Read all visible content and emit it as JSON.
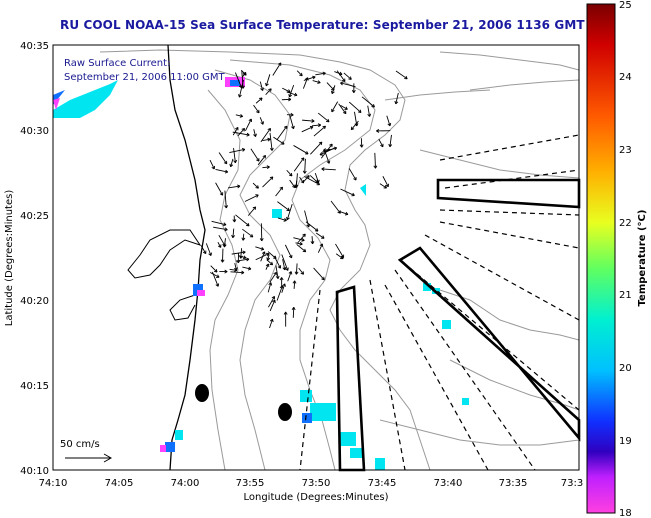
{
  "title": "RU COOL  NOAA-15  Sea Surface Temperature:  September 21, 2006 1136 GMT",
  "current_note": {
    "line1": "Raw Surface Current:",
    "line2": "September 21, 2006 11:00 GMT"
  },
  "axes": {
    "xlabel": "Longitude (Degrees:Minutes)",
    "ylabel": "Latitude (Degrees:Minutes)",
    "x_ticks": [
      "74:10",
      "74:05",
      "74:00",
      "73:55",
      "73:50",
      "73:45",
      "73:40",
      "73:35",
      "73:3"
    ],
    "y_ticks": [
      "40:35",
      "40:30",
      "40:25",
      "40:20",
      "40:15",
      "40:10"
    ]
  },
  "scale_arrow": {
    "label": "50 cm/s"
  },
  "colorbar": {
    "label": "Temperature (°C)",
    "ticks": [
      "25",
      "24",
      "23",
      "22",
      "21",
      "20",
      "19",
      "18"
    ],
    "min": 18,
    "max": 25
  },
  "colors": {
    "title": "#1a1aa0",
    "coast": "#000000",
    "contour": "#888888",
    "sst_cyan": "#00e5f0",
    "sst_blue": "#1070ff",
    "sst_magenta": "#ff40ff"
  }
}
